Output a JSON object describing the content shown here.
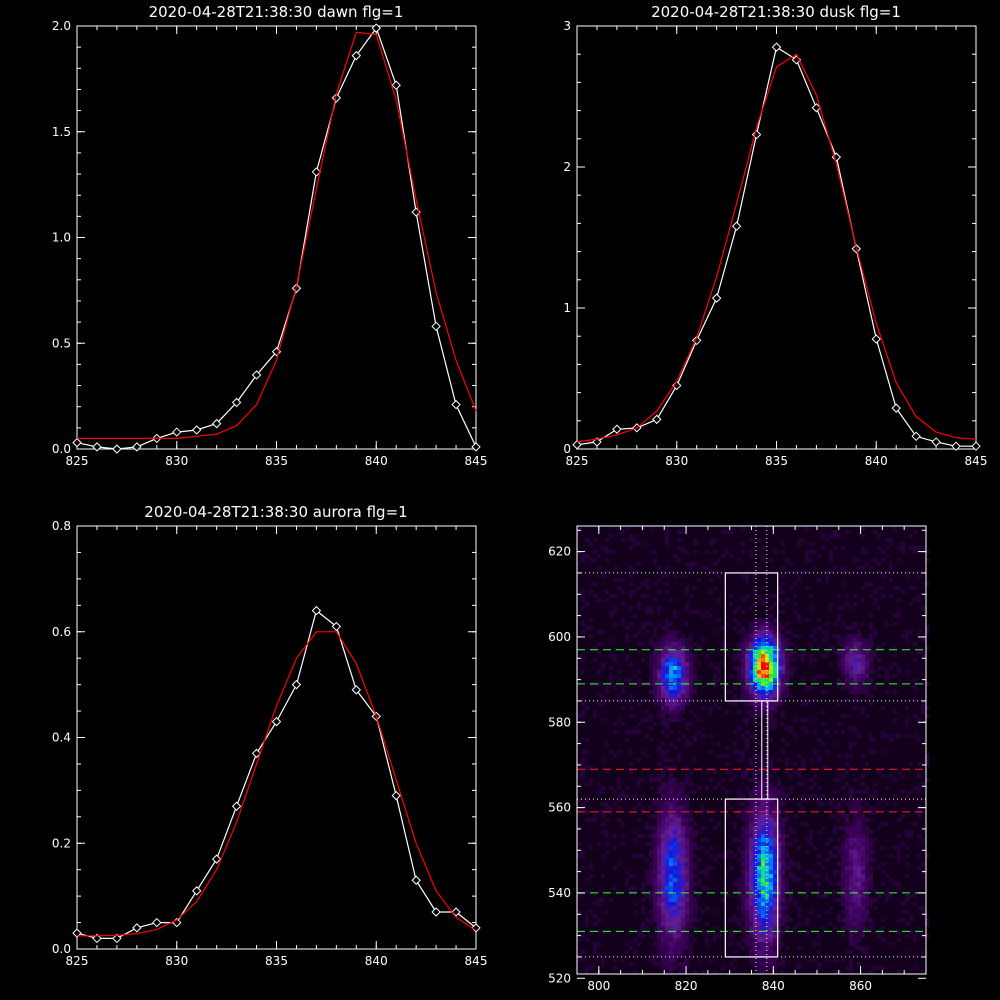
{
  "chart_data": [
    {
      "type": "line",
      "title": "2020-04-28T21:38:30 dawn flg=1",
      "xlim": [
        825,
        845
      ],
      "ylim": [
        0,
        2.0
      ],
      "x_ticks": [
        825,
        830,
        835,
        840,
        845
      ],
      "x_tick_labels": [
        "825",
        "830",
        "835",
        "840",
        "845"
      ],
      "y_ticks": [
        0,
        0.5,
        1.0,
        1.5,
        2.0
      ],
      "y_tick_labels": [
        "0.0",
        "0.5",
        "1.0",
        "1.5",
        "2.0"
      ],
      "series": [
        {
          "color": "#ffffff",
          "marker": "diamond",
          "x": [
            825,
            826,
            827,
            828,
            829,
            830,
            831,
            832,
            833,
            834,
            835,
            836,
            837,
            838,
            839,
            840,
            841,
            842,
            843,
            844,
            845
          ],
          "values": [
            0.03,
            0.01,
            0.0,
            0.01,
            0.05,
            0.08,
            0.09,
            0.12,
            0.22,
            0.35,
            0.46,
            0.76,
            1.31,
            1.66,
            1.86,
            1.99,
            1.72,
            1.12,
            0.58,
            0.21,
            0.01
          ]
        },
        {
          "color": "#ff0000",
          "marker": "none",
          "x": [
            825,
            826,
            827,
            828,
            829,
            830,
            831,
            832,
            833,
            834,
            835,
            836,
            837,
            838,
            839,
            840,
            841,
            842,
            843,
            844,
            845
          ],
          "values": [
            0.05,
            0.05,
            0.05,
            0.05,
            0.05,
            0.05,
            0.06,
            0.07,
            0.11,
            0.21,
            0.42,
            0.77,
            1.23,
            1.68,
            1.97,
            1.96,
            1.65,
            1.18,
            0.74,
            0.42,
            0.18
          ]
        }
      ]
    },
    {
      "type": "line",
      "title": "2020-04-28T21:38:30 dusk flg=1",
      "xlim": [
        825,
        845
      ],
      "ylim": [
        0,
        3
      ],
      "x_ticks": [
        825,
        830,
        835,
        840,
        845
      ],
      "x_tick_labels": [
        "825",
        "830",
        "835",
        "840",
        "845"
      ],
      "y_ticks": [
        0,
        1,
        2,
        3
      ],
      "y_tick_labels": [
        "0",
        "1",
        "2",
        "3"
      ],
      "series": [
        {
          "color": "#ffffff",
          "marker": "diamond",
          "x": [
            825,
            826,
            827,
            828,
            829,
            830,
            831,
            832,
            833,
            834,
            835,
            836,
            837,
            838,
            839,
            840,
            841,
            842,
            843,
            844,
            845
          ],
          "values": [
            0.03,
            0.05,
            0.14,
            0.15,
            0.21,
            0.45,
            0.77,
            1.07,
            1.58,
            2.23,
            2.85,
            2.76,
            2.42,
            2.07,
            1.42,
            0.78,
            0.29,
            0.09,
            0.05,
            0.02,
            0.02
          ]
        },
        {
          "color": "#ff0000",
          "marker": "none",
          "x": [
            825,
            826,
            827,
            828,
            829,
            830,
            831,
            832,
            833,
            834,
            835,
            836,
            837,
            838,
            839,
            840,
            841,
            842,
            843,
            844,
            845
          ],
          "values": [
            0.05,
            0.07,
            0.1,
            0.15,
            0.27,
            0.48,
            0.79,
            1.22,
            1.74,
            2.28,
            2.71,
            2.8,
            2.51,
            2.02,
            1.43,
            0.89,
            0.47,
            0.23,
            0.12,
            0.08,
            0.07
          ]
        }
      ]
    },
    {
      "type": "line",
      "title": "2020-04-28T21:38:30 aurora flg=1",
      "xlim": [
        825,
        845
      ],
      "ylim": [
        0,
        0.8
      ],
      "x_ticks": [
        825,
        830,
        835,
        840,
        845
      ],
      "x_tick_labels": [
        "825",
        "830",
        "835",
        "840",
        "845"
      ],
      "y_ticks": [
        0,
        0.2,
        0.4,
        0.6,
        0.8
      ],
      "y_tick_labels": [
        "0.0",
        "0.2",
        "0.4",
        "0.6",
        "0.8"
      ],
      "series": [
        {
          "color": "#ffffff",
          "marker": "diamond",
          "x": [
            825,
            826,
            827,
            828,
            829,
            830,
            831,
            832,
            833,
            834,
            835,
            836,
            837,
            838,
            839,
            840,
            841,
            842,
            843,
            844,
            845
          ],
          "values": [
            0.03,
            0.02,
            0.02,
            0.04,
            0.05,
            0.05,
            0.11,
            0.17,
            0.27,
            0.37,
            0.43,
            0.5,
            0.64,
            0.61,
            0.49,
            0.44,
            0.29,
            0.13,
            0.07,
            0.07,
            0.04
          ]
        },
        {
          "color": "#ff0000",
          "marker": "none",
          "x": [
            825,
            826,
            827,
            828,
            829,
            830,
            831,
            832,
            833,
            834,
            835,
            836,
            837,
            838,
            839,
            840,
            841,
            842,
            843,
            844,
            845
          ],
          "values": [
            0.025,
            0.025,
            0.026,
            0.029,
            0.037,
            0.055,
            0.09,
            0.15,
            0.24,
            0.35,
            0.46,
            0.55,
            0.6,
            0.6,
            0.54,
            0.44,
            0.32,
            0.2,
            0.11,
            0.06,
            0.035
          ]
        }
      ]
    },
    {
      "type": "heatmap",
      "title": "",
      "xlim": [
        795,
        875
      ],
      "ylim": [
        521,
        626
      ],
      "x_ticks": [
        800,
        820,
        840,
        860
      ],
      "x_tick_labels": [
        "800",
        "820",
        "840",
        "860"
      ],
      "y_ticks": [
        520,
        540,
        560,
        580,
        600,
        620
      ],
      "y_tick_labels": [
        "520",
        "540",
        "560",
        "580",
        "600",
        "620"
      ],
      "blobs": [
        {
          "x": 817,
          "y": 591,
          "sx": 2.2,
          "sy": 4.5,
          "amp": 0.5
        },
        {
          "x": 838,
          "y": 593,
          "sx": 2.3,
          "sy": 4.5,
          "amp": 1.0
        },
        {
          "x": 859,
          "y": 594,
          "sx": 2.0,
          "sy": 3.5,
          "amp": 0.25
        },
        {
          "x": 817,
          "y": 544,
          "sx": 2.3,
          "sy": 10,
          "amp": 0.42
        },
        {
          "x": 838,
          "y": 544,
          "sx": 2.2,
          "sy": 10,
          "amp": 0.6
        },
        {
          "x": 859,
          "y": 544,
          "sx": 2.0,
          "sy": 9,
          "amp": 0.18
        }
      ],
      "boxes": [
        {
          "x1": 829,
          "x2": 841,
          "y1": 585,
          "y2": 615
        },
        {
          "x1": 829,
          "x2": 841,
          "y1": 525,
          "y2": 562
        }
      ],
      "vertical_dotted_lines": [
        836,
        838.5
      ],
      "horizontal_dotted_lines": [
        615,
        585,
        562,
        525
      ],
      "green_dashed_lines": [
        597,
        589,
        540,
        531
      ],
      "red_dashed_lines": [
        569,
        559
      ]
    }
  ]
}
